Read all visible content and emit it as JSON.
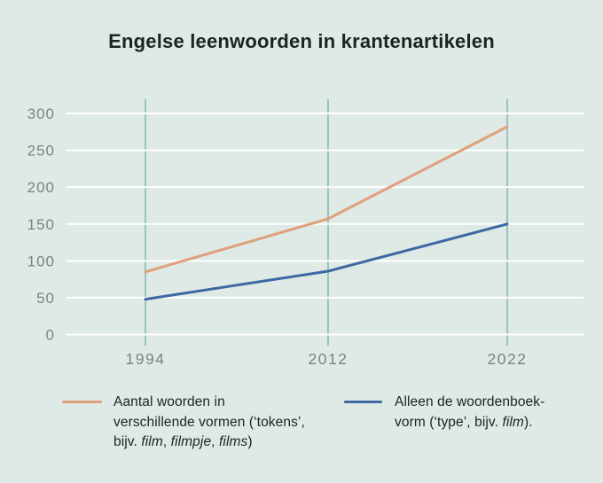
{
  "title": "Engelse leenwoorden in krantenartikelen",
  "colors": {
    "background": "#dfe9e5",
    "title_text": "#1c2320",
    "gridline": "#ffffff",
    "category_line": "#97c5bc",
    "tick_label": "#76867f",
    "series_tokens": "#dfa07c",
    "series_type": "#3e68a3",
    "legend_text": "#1c2320"
  },
  "chart_data": {
    "type": "line",
    "title": "Engelse leenwoorden in krantenartikelen",
    "categories": [
      "1994",
      "2012",
      "2022"
    ],
    "series": [
      {
        "name": "tokens",
        "legend": "Aantal woorden in verschillende vormen (‘tokens’, bijv. film, filmpje, films)",
        "color": "#dfa07c",
        "values": [
          85,
          157,
          282
        ]
      },
      {
        "name": "type",
        "legend": "Alleen de woordenboek-vorm (‘type’, bijv. film).",
        "color": "#3e68a3",
        "values": [
          48,
          86,
          150
        ]
      }
    ],
    "ylim": [
      0,
      300
    ],
    "yticks": [
      0,
      50,
      100,
      150,
      200,
      250,
      300
    ],
    "grid": true,
    "legend_position": "bottom",
    "xlabel": "",
    "ylabel": ""
  },
  "legend": {
    "items": [
      {
        "series": "tokens",
        "swatch_color": "#dfa07c",
        "lines": [
          [
            {
              "t": "Aantal woorden in"
            }
          ],
          [
            {
              "t": "verschillende vormen (‘tokens’,"
            }
          ],
          [
            {
              "t": "bijv. "
            },
            {
              "t": "film",
              "i": true
            },
            {
              "t": ", "
            },
            {
              "t": "filmpje",
              "i": true
            },
            {
              "t": ", "
            },
            {
              "t": "films",
              "i": true
            },
            {
              "t": ")"
            }
          ]
        ]
      },
      {
        "series": "type",
        "swatch_color": "#3e68a3",
        "lines": [
          [
            {
              "t": "Alleen de woordenboek-"
            }
          ],
          [
            {
              "t": "vorm (‘type’, bijv. "
            },
            {
              "t": "film",
              "i": true
            },
            {
              "t": ")."
            }
          ]
        ]
      }
    ]
  }
}
